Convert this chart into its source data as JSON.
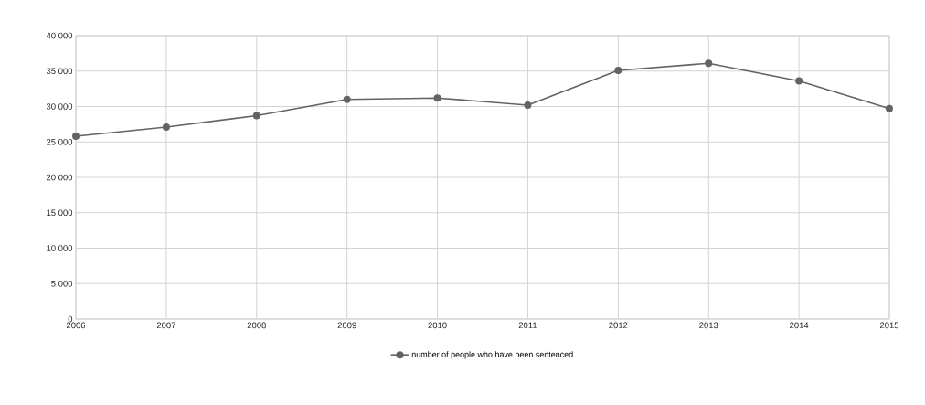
{
  "chart_data": {
    "type": "line",
    "categories": [
      "2006",
      "2007",
      "2008",
      "2009",
      "2010",
      "2011",
      "2012",
      "2013",
      "2014",
      "2015"
    ],
    "series": [
      {
        "name": "number of people who have been sentenced",
        "color": "#636366",
        "values": [
          25800,
          27100,
          28700,
          31000,
          31200,
          30200,
          35100,
          36100,
          33600,
          29700
        ]
      }
    ],
    "ylim": [
      0,
      40000
    ],
    "yticks": [
      {
        "value": 0,
        "label": "0"
      },
      {
        "value": 5000,
        "label": "5 000"
      },
      {
        "value": 10000,
        "label": "10 000"
      },
      {
        "value": 15000,
        "label": "15 000"
      },
      {
        "value": 20000,
        "label": "20 000"
      },
      {
        "value": 25000,
        "label": "25 000"
      },
      {
        "value": 30000,
        "label": "30 000"
      },
      {
        "value": 35000,
        "label": "35 000"
      },
      {
        "value": 40000,
        "label": "40 000"
      }
    ],
    "grid": true,
    "legend": "bottom",
    "marker": "circle",
    "line_style": "solid"
  }
}
